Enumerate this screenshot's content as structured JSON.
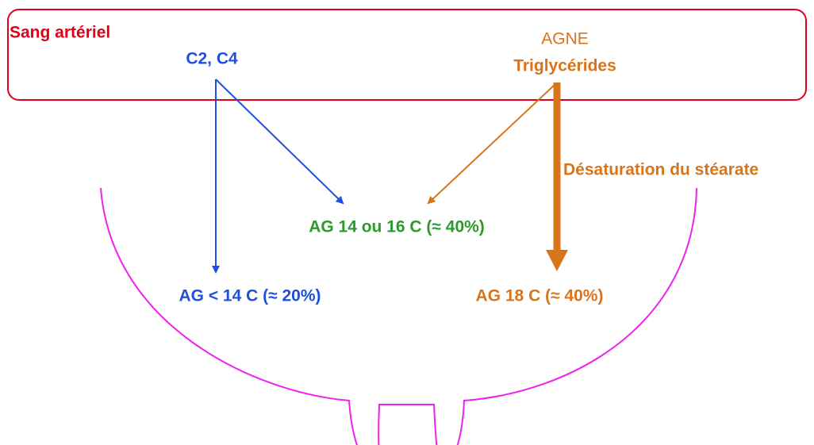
{
  "blood": {
    "label": "Sang artériel",
    "source_short": "C2, C4",
    "source_long_1": "AGNE",
    "source_long_2": "Triglycérides"
  },
  "process": "Désaturation du stéarate",
  "products": {
    "medium": "AG 14 ou 16 C (≈ 40%)",
    "short": "AG < 14 C (≈ 20%)",
    "long": "AG 18 C (≈ 40%)"
  }
}
